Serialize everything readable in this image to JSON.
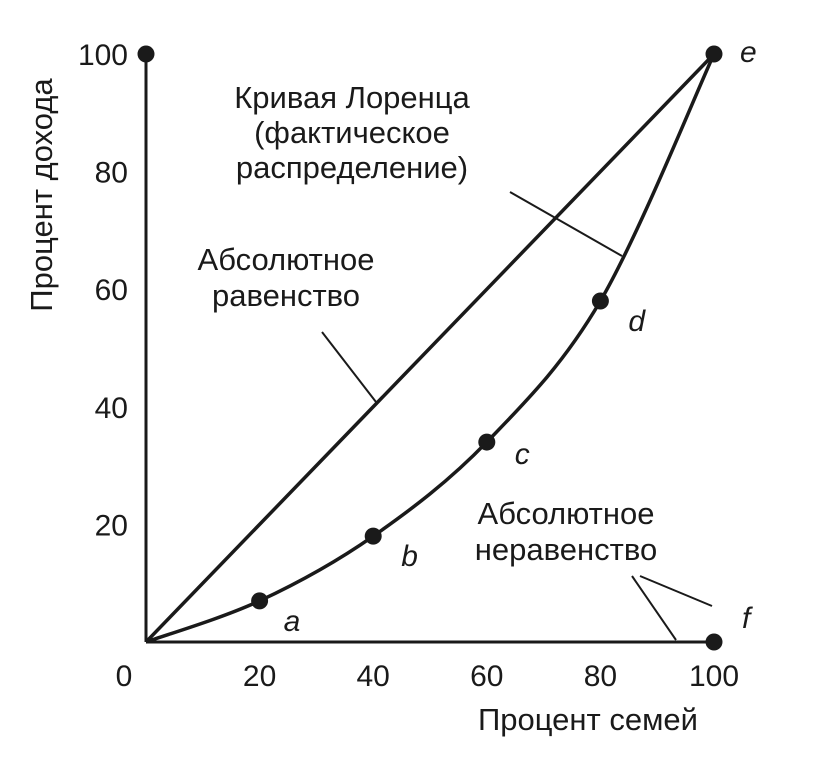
{
  "chart_data": {
    "type": "line",
    "xlabel": "Процент семей",
    "ylabel": "Процент дохода",
    "xlim": [
      0,
      100
    ],
    "ylim": [
      0,
      100
    ],
    "x_ticks": [
      "0",
      "20",
      "40",
      "60",
      "80",
      "100"
    ],
    "y_ticks": [
      "20",
      "40",
      "60",
      "80",
      "100"
    ],
    "grid": false,
    "legend": "none",
    "series": [
      {
        "name": "Абсолютное равенство",
        "x": [
          0,
          100
        ],
        "y": [
          0,
          100
        ]
      },
      {
        "name": "Кривая Лоренца (фактическое распределение)",
        "x": [
          0,
          20,
          40,
          60,
          80,
          100
        ],
        "y": [
          0,
          7,
          18,
          34,
          58,
          100
        ]
      },
      {
        "name": "Абсолютное неравенство",
        "x": [
          0,
          100,
          100
        ],
        "y": [
          0,
          0,
          100
        ]
      }
    ],
    "points": [
      {
        "label": "a",
        "x": 20,
        "y": 7
      },
      {
        "label": "b",
        "x": 40,
        "y": 18
      },
      {
        "label": "c",
        "x": 60,
        "y": 34
      },
      {
        "label": "d",
        "x": 80,
        "y": 58
      },
      {
        "label": "e",
        "x": 100,
        "y": 100
      },
      {
        "label": "f",
        "x": 100,
        "y": 0
      }
    ],
    "extra_points": [
      {
        "x": 0,
        "y": 100
      }
    ],
    "annotations": {
      "lorenz": [
        "Кривая Лоренца",
        "(фактическое",
        "распределение)"
      ],
      "equality": [
        "Абсолютное",
        "равенство"
      ],
      "inequality": [
        "Абсолютное",
        "неравенство"
      ]
    },
    "colors": {
      "ink": "#1a1a1a",
      "background": "#ffffff"
    }
  }
}
